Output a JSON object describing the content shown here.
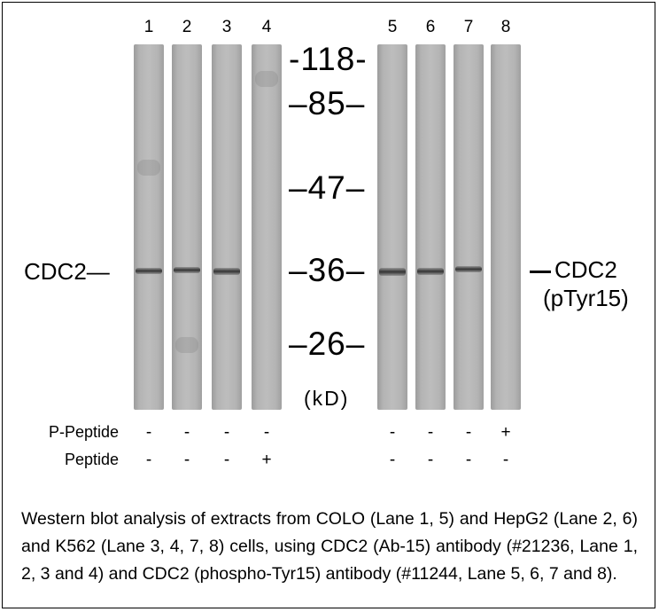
{
  "lanes": [
    "1",
    "2",
    "3",
    "4",
    "5",
    "6",
    "7",
    "8"
  ],
  "markers": [
    "-118-",
    "–85–",
    "–47–",
    "–36–",
    "–26–"
  ],
  "unit": "(kD)",
  "left_label": "CDC2—",
  "right_label": [
    "CDC2",
    "(pTyr15)"
  ],
  "rows": [
    {
      "label": "P-Peptide",
      "signs": [
        "-",
        "-",
        "-",
        "-",
        "-",
        "-",
        "-",
        "+"
      ]
    },
    {
      "label": "Peptide",
      "signs": [
        "-",
        "-",
        "-",
        "+",
        "-",
        "-",
        "-",
        "-"
      ]
    }
  ],
  "caption": "Western blot analysis of extracts from COLO (Lane 1, 5) and HepG2 (Lane 2, 6) and K562 (Lane 3, 4, 7, 8) cells, using CDC2 (Ab-15) antibody (#21236, Lane 1, 2, 3 and 4) and CDC2 (phospho-Tyr15) antibody (#11244, Lane 5, 6, 7 and 8)."
}
